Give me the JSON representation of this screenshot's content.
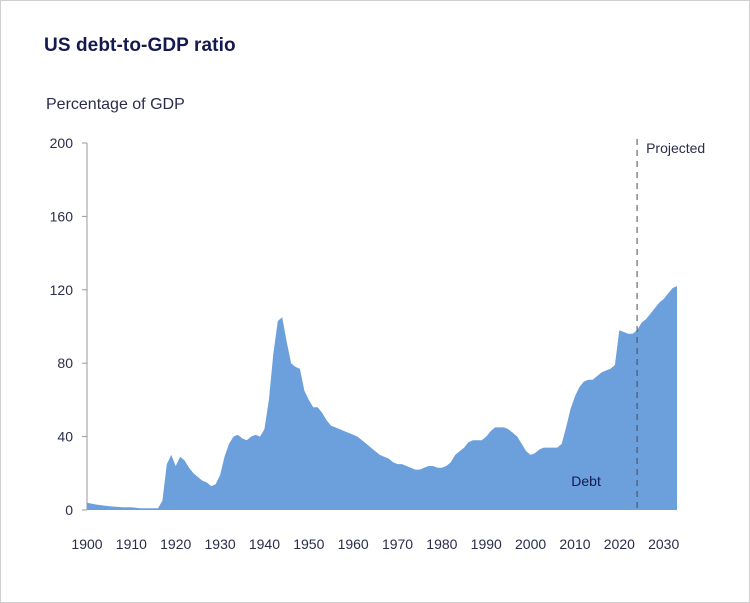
{
  "chart_data": {
    "type": "area",
    "title": "US debt-to-GDP ratio",
    "ylabel": "Percentage of GDP",
    "xlabel": "",
    "xlim": [
      1900,
      2033
    ],
    "ylim": [
      0,
      200
    ],
    "x_ticks": [
      1900,
      1910,
      1920,
      1930,
      1940,
      1950,
      1960,
      1970,
      1980,
      1990,
      2000,
      2010,
      2020,
      2030
    ],
    "y_ticks": [
      0,
      40,
      80,
      120,
      160,
      200
    ],
    "grid": false,
    "legend": "none",
    "projection_start": 2024,
    "projection_label": "Projected",
    "color": "#6ca0dc",
    "series": [
      {
        "name": "Debt",
        "x": [
          1900,
          1902,
          1905,
          1908,
          1910,
          1912,
          1914,
          1916,
          1917,
          1918,
          1919,
          1920,
          1921,
          1922,
          1923,
          1924,
          1925,
          1926,
          1927,
          1928,
          1929,
          1930,
          1931,
          1932,
          1933,
          1934,
          1935,
          1936,
          1937,
          1938,
          1939,
          1940,
          1941,
          1942,
          1943,
          1944,
          1945,
          1946,
          1947,
          1948,
          1949,
          1950,
          1951,
          1952,
          1953,
          1954,
          1955,
          1956,
          1957,
          1958,
          1959,
          1960,
          1961,
          1962,
          1963,
          1964,
          1965,
          1966,
          1967,
          1968,
          1969,
          1970,
          1971,
          1972,
          1973,
          1974,
          1975,
          1976,
          1977,
          1978,
          1979,
          1980,
          1981,
          1982,
          1983,
          1984,
          1985,
          1986,
          1987,
          1988,
          1989,
          1990,
          1991,
          1992,
          1993,
          1994,
          1995,
          1996,
          1997,
          1998,
          1999,
          2000,
          2001,
          2002,
          2003,
          2004,
          2005,
          2006,
          2007,
          2008,
          2009,
          2010,
          2011,
          2012,
          2013,
          2014,
          2015,
          2016,
          2017,
          2018,
          2019,
          2020,
          2021,
          2022,
          2023,
          2024,
          2025,
          2026,
          2027,
          2028,
          2029,
          2030,
          2031,
          2032,
          2033
        ],
        "values": [
          4,
          3,
          2,
          1.5,
          1.5,
          1,
          1,
          1,
          5,
          25,
          30,
          24,
          29,
          27,
          23,
          20,
          18,
          16,
          15,
          13,
          14,
          19,
          29,
          36,
          40,
          41,
          39,
          38,
          40,
          41,
          40,
          44,
          60,
          85,
          103,
          105,
          92,
          80,
          78,
          77,
          65,
          60,
          56,
          56,
          53,
          49,
          46,
          45,
          44,
          43,
          42,
          41,
          40,
          38,
          36,
          34,
          32,
          30,
          29,
          28,
          26,
          25,
          25,
          24,
          23,
          22,
          22,
          23,
          24,
          24,
          23,
          23,
          24,
          26,
          30,
          32,
          34,
          37,
          38,
          38,
          38,
          40,
          43,
          45,
          45,
          45,
          44,
          42,
          40,
          36,
          32,
          30,
          31,
          33,
          34,
          34,
          34,
          34,
          36,
          45,
          55,
          62,
          67,
          70,
          71,
          71,
          73,
          75,
          76,
          77,
          79,
          98,
          97,
          96,
          96,
          98,
          102,
          104,
          107,
          110,
          113,
          115,
          118,
          121,
          122
        ]
      }
    ]
  }
}
